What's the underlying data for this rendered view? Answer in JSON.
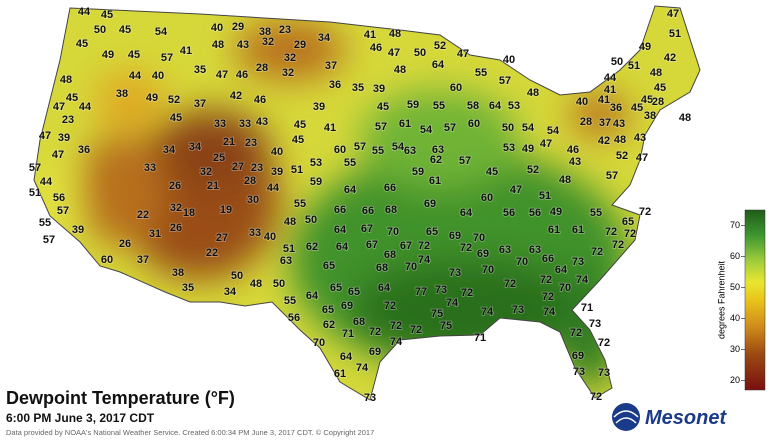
{
  "title": "Dewpoint Temperature (°F)",
  "subtitle": "6:00 PM June 3, 2017 CDT",
  "credit": "Data provided by NOAA's National Weather Service. Created 6:00:34 PM June 3, 2017 CDT. © Copyright 2017",
  "logo": "Mesonet",
  "colorbar": {
    "label": "degrees Fahrenheit",
    "lim": [
      17,
      75
    ],
    "ticks": [
      20,
      30,
      40,
      50,
      60,
      70
    ]
  },
  "stations": [
    44,
    45,
    47,
    50,
    45,
    54,
    40,
    29,
    38,
    32,
    23,
    34,
    41,
    48,
    52,
    47,
    51,
    45,
    49,
    45,
    57,
    41,
    48,
    43,
    29,
    32,
    46,
    47,
    50,
    49,
    42,
    50,
    51,
    48,
    44,
    40,
    35,
    47,
    46,
    28,
    32,
    37,
    36,
    35,
    39,
    48,
    64,
    55,
    40,
    57,
    48,
    44,
    48,
    41,
    45,
    45,
    38,
    49,
    52,
    37,
    42,
    46,
    39,
    45,
    59,
    55,
    60,
    58,
    64,
    53,
    40,
    41,
    36,
    45,
    28,
    48,
    47,
    44,
    45,
    33,
    33,
    43,
    45,
    41,
    57,
    61,
    54,
    57,
    60,
    50,
    54,
    54,
    28,
    37,
    43,
    45,
    38,
    23,
    47,
    39,
    34,
    21,
    23,
    45,
    60,
    57,
    55,
    54,
    63,
    53,
    49,
    47,
    46,
    42,
    48,
    43,
    47,
    36,
    34,
    25,
    40,
    53,
    55,
    63,
    62,
    57,
    43,
    52,
    47,
    57,
    33,
    32,
    27,
    23,
    39,
    51,
    59,
    45,
    52,
    57,
    44,
    26,
    21,
    28,
    44,
    59,
    64,
    66,
    61,
    47,
    51,
    48,
    51,
    56,
    30,
    55,
    57,
    32,
    18,
    19,
    69,
    60,
    55,
    22,
    26,
    48,
    50,
    66,
    66,
    68,
    64,
    56,
    56,
    49,
    55,
    65,
    72,
    39,
    31,
    33,
    64,
    67,
    70,
    65,
    69,
    70,
    61,
    61,
    72,
    57,
    26,
    27,
    40,
    62,
    64,
    67,
    67,
    72,
    72,
    63,
    63,
    72,
    72,
    60,
    37,
    22,
    51,
    63,
    68,
    74,
    70,
    69,
    70,
    66,
    64,
    73,
    72,
    38,
    50,
    65,
    68,
    73,
    70,
    72,
    72,
    70,
    74,
    35,
    34,
    48,
    50,
    55,
    64,
    65,
    65,
    64,
    77,
    73,
    72,
    72,
    65,
    69,
    72,
    74,
    75,
    74,
    73,
    74,
    71,
    56,
    62,
    68,
    72,
    72,
    75,
    73,
    72,
    70,
    71,
    72,
    74,
    71,
    72,
    69,
    64,
    69,
    61,
    74,
    73,
    73,
    73,
    72
  ]
}
